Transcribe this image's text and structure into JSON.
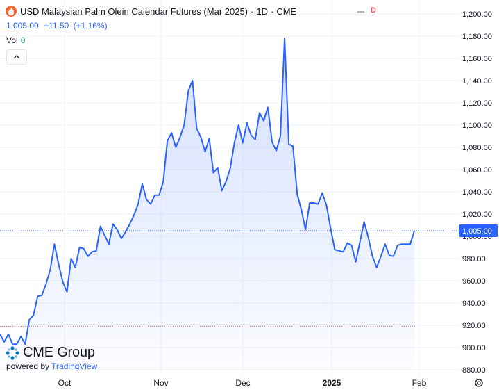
{
  "header": {
    "title": "USD Malaysian Palm Olein Calendar Futures (Mar 2025)",
    "interval": "1D",
    "exchange": "CME",
    "dot": "·",
    "flag": "D",
    "flag_color": "#f7525f"
  },
  "quote": {
    "price": "1,005.00",
    "change": "+11.50",
    "change_pct": "(+1.16%)",
    "color": "#2962ff"
  },
  "volume": {
    "label": "Vol",
    "value": "0",
    "value_color": "#26a69a"
  },
  "branding": {
    "logo_text": "CME Group",
    "powered_by": "powered by",
    "provider": "TradingView"
  },
  "colors": {
    "line": "#2962ff",
    "area": "#2962ff",
    "last_price_label_bg": "#2962ff",
    "red_ref": "#f7525f",
    "grid": "#f0f3fa"
  },
  "icons": {
    "exchange_logo": "flame-icon",
    "collapse": "chevron-up-icon",
    "settings": "gear-icon"
  },
  "chart_data": {
    "type": "area",
    "x_axis": {
      "labels": [
        "Oct",
        "Nov",
        "Dec",
        "2025",
        "Feb"
      ]
    },
    "y_axis": {
      "ylim": [
        880,
        1200
      ],
      "ticks": [
        "1,200.00",
        "1,180.00",
        "1,160.00",
        "1,140.00",
        "1,120.00",
        "1,100.00",
        "1,080.00",
        "1,060.00",
        "1,040.00",
        "1,020.00",
        "1,000.00",
        "980.00",
        "960.00",
        "940.00",
        "920.00",
        "900.00",
        "880.00"
      ],
      "tick_values": [
        1200,
        1180,
        1160,
        1140,
        1120,
        1100,
        1080,
        1060,
        1040,
        1020,
        1000,
        980,
        960,
        940,
        920,
        900,
        880
      ]
    },
    "last_price": {
      "value": 1005,
      "label": "1,005.00"
    },
    "reference_price": 919,
    "grid": true,
    "series": [
      {
        "values": [
          912,
          905,
          912,
          903,
          903,
          910,
          903,
          925,
          929,
          946,
          947,
          957,
          970,
          993,
          975,
          959,
          950,
          980,
          972,
          990,
          989,
          982,
          986,
          987,
          1009,
          1001,
          993,
          1011,
          1006,
          998,
          1004,
          1011,
          1019,
          1029,
          1047,
          1033,
          1029,
          1037,
          1037,
          1049,
          1086,
          1093,
          1080,
          1089,
          1100,
          1131,
          1140,
          1097,
          1089,
          1076,
          1088,
          1057,
          1062,
          1041,
          1049,
          1061,
          1084,
          1100,
          1084,
          1102,
          1091,
          1087,
          1111,
          1104,
          1116,
          1085,
          1077,
          1090,
          1178,
          1083,
          1081,
          1038,
          1024,
          1006,
          1030,
          1030,
          1029,
          1039,
          1028,
          1007,
          988,
          987,
          986,
          994,
          992,
          977,
          995,
          1013,
          999,
          982,
          972,
          982,
          993,
          983,
          982,
          992,
          993,
          993,
          993,
          1005
        ]
      }
    ]
  }
}
